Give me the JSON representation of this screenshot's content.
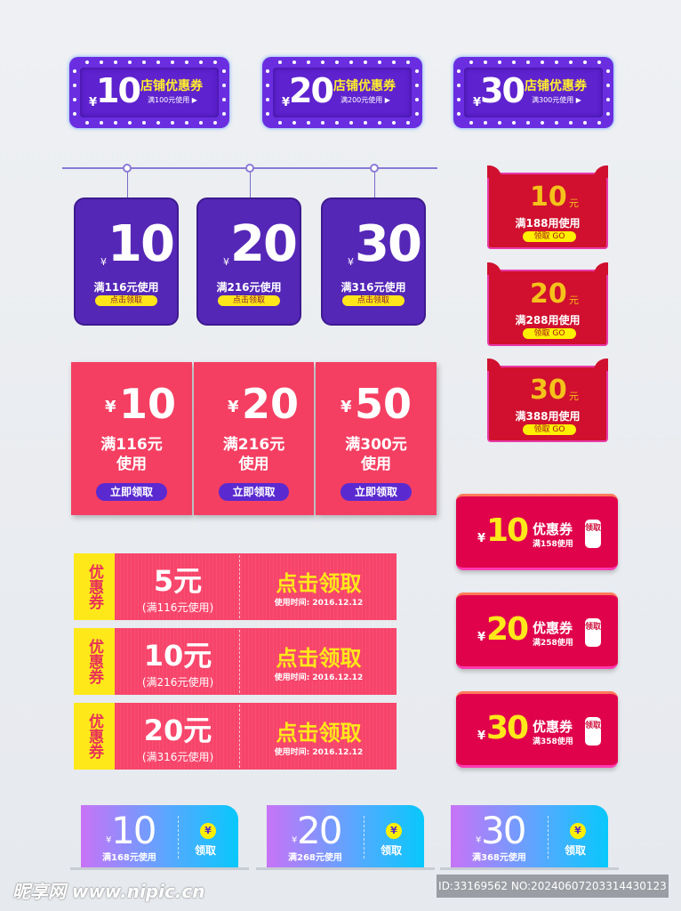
{
  "marquee": [
    {
      "yen": "¥",
      "num": "10",
      "title": "店铺优惠券",
      "cond": "满100元使用 ▶"
    },
    {
      "yen": "¥",
      "num": "20",
      "title": "店铺优惠券",
      "cond": "满200元使用 ▶"
    },
    {
      "yen": "¥",
      "num": "30",
      "title": "店铺优惠券",
      "cond": "满300元使用 ▶"
    }
  ],
  "hanging": [
    {
      "yen": "¥",
      "num": "10",
      "cond": "满116元使用",
      "btn": "点击领取"
    },
    {
      "yen": "¥",
      "num": "20",
      "cond": "满216元使用",
      "btn": "点击领取"
    },
    {
      "yen": "¥",
      "num": "30",
      "cond": "满316元使用",
      "btn": "点击领取"
    }
  ],
  "ears": [
    {
      "num": "10",
      "unit": "元",
      "cond": "满188用使用",
      "btn": "领取 GO"
    },
    {
      "num": "20",
      "unit": "元",
      "cond": "满288用使用",
      "btn": "领取 GO"
    },
    {
      "num": "30",
      "unit": "元",
      "cond": "满388用使用",
      "btn": "领取 GO"
    }
  ],
  "pink": [
    {
      "yen": "¥",
      "num": "10",
      "cond": "满116元\n使用",
      "btn": "立即领取"
    },
    {
      "yen": "¥",
      "num": "20",
      "cond": "满216元\n使用",
      "btn": "立即领取"
    },
    {
      "yen": "¥",
      "num": "50",
      "cond": "满300元\n使用",
      "btn": "立即领取"
    }
  ],
  "ribbons": [
    {
      "tag": "优惠券",
      "amount": "5元",
      "cond": "(满116元使用)",
      "cta": "点击领取",
      "time": "使用时间: 2016.12.12"
    },
    {
      "tag": "优惠券",
      "amount": "10元",
      "cond": "(满216元使用)",
      "cta": "点击领取",
      "time": "使用时间: 2016.12.12"
    },
    {
      "tag": "优惠券",
      "amount": "20元",
      "cond": "(满316元使用)",
      "cta": "点击领取",
      "time": "使用时间: 2016.12.12"
    }
  ],
  "red": [
    {
      "yen": "¥",
      "num": "10",
      "title": "优惠券",
      "cond": "满158使用",
      "btn": "领取"
    },
    {
      "yen": "¥",
      "num": "20",
      "title": "优惠券",
      "cond": "满258使用",
      "btn": "领取"
    },
    {
      "yen": "¥",
      "num": "30",
      "title": "优惠券",
      "cond": "满358使用",
      "btn": "领取"
    }
  ],
  "gradient": [
    {
      "yen": "¥",
      "num": "10",
      "cond": "满168元使用",
      "coin": "¥",
      "btn": "领取"
    },
    {
      "yen": "¥",
      "num": "20",
      "cond": "满268元使用",
      "coin": "¥",
      "btn": "领取"
    },
    {
      "yen": "¥",
      "num": "30",
      "cond": "满368元使用",
      "coin": "¥",
      "btn": "领取"
    }
  ],
  "watermark": "昵享网 www.nipic.cn",
  "image_id": "ID:33169562 NO:20240607203314430123"
}
